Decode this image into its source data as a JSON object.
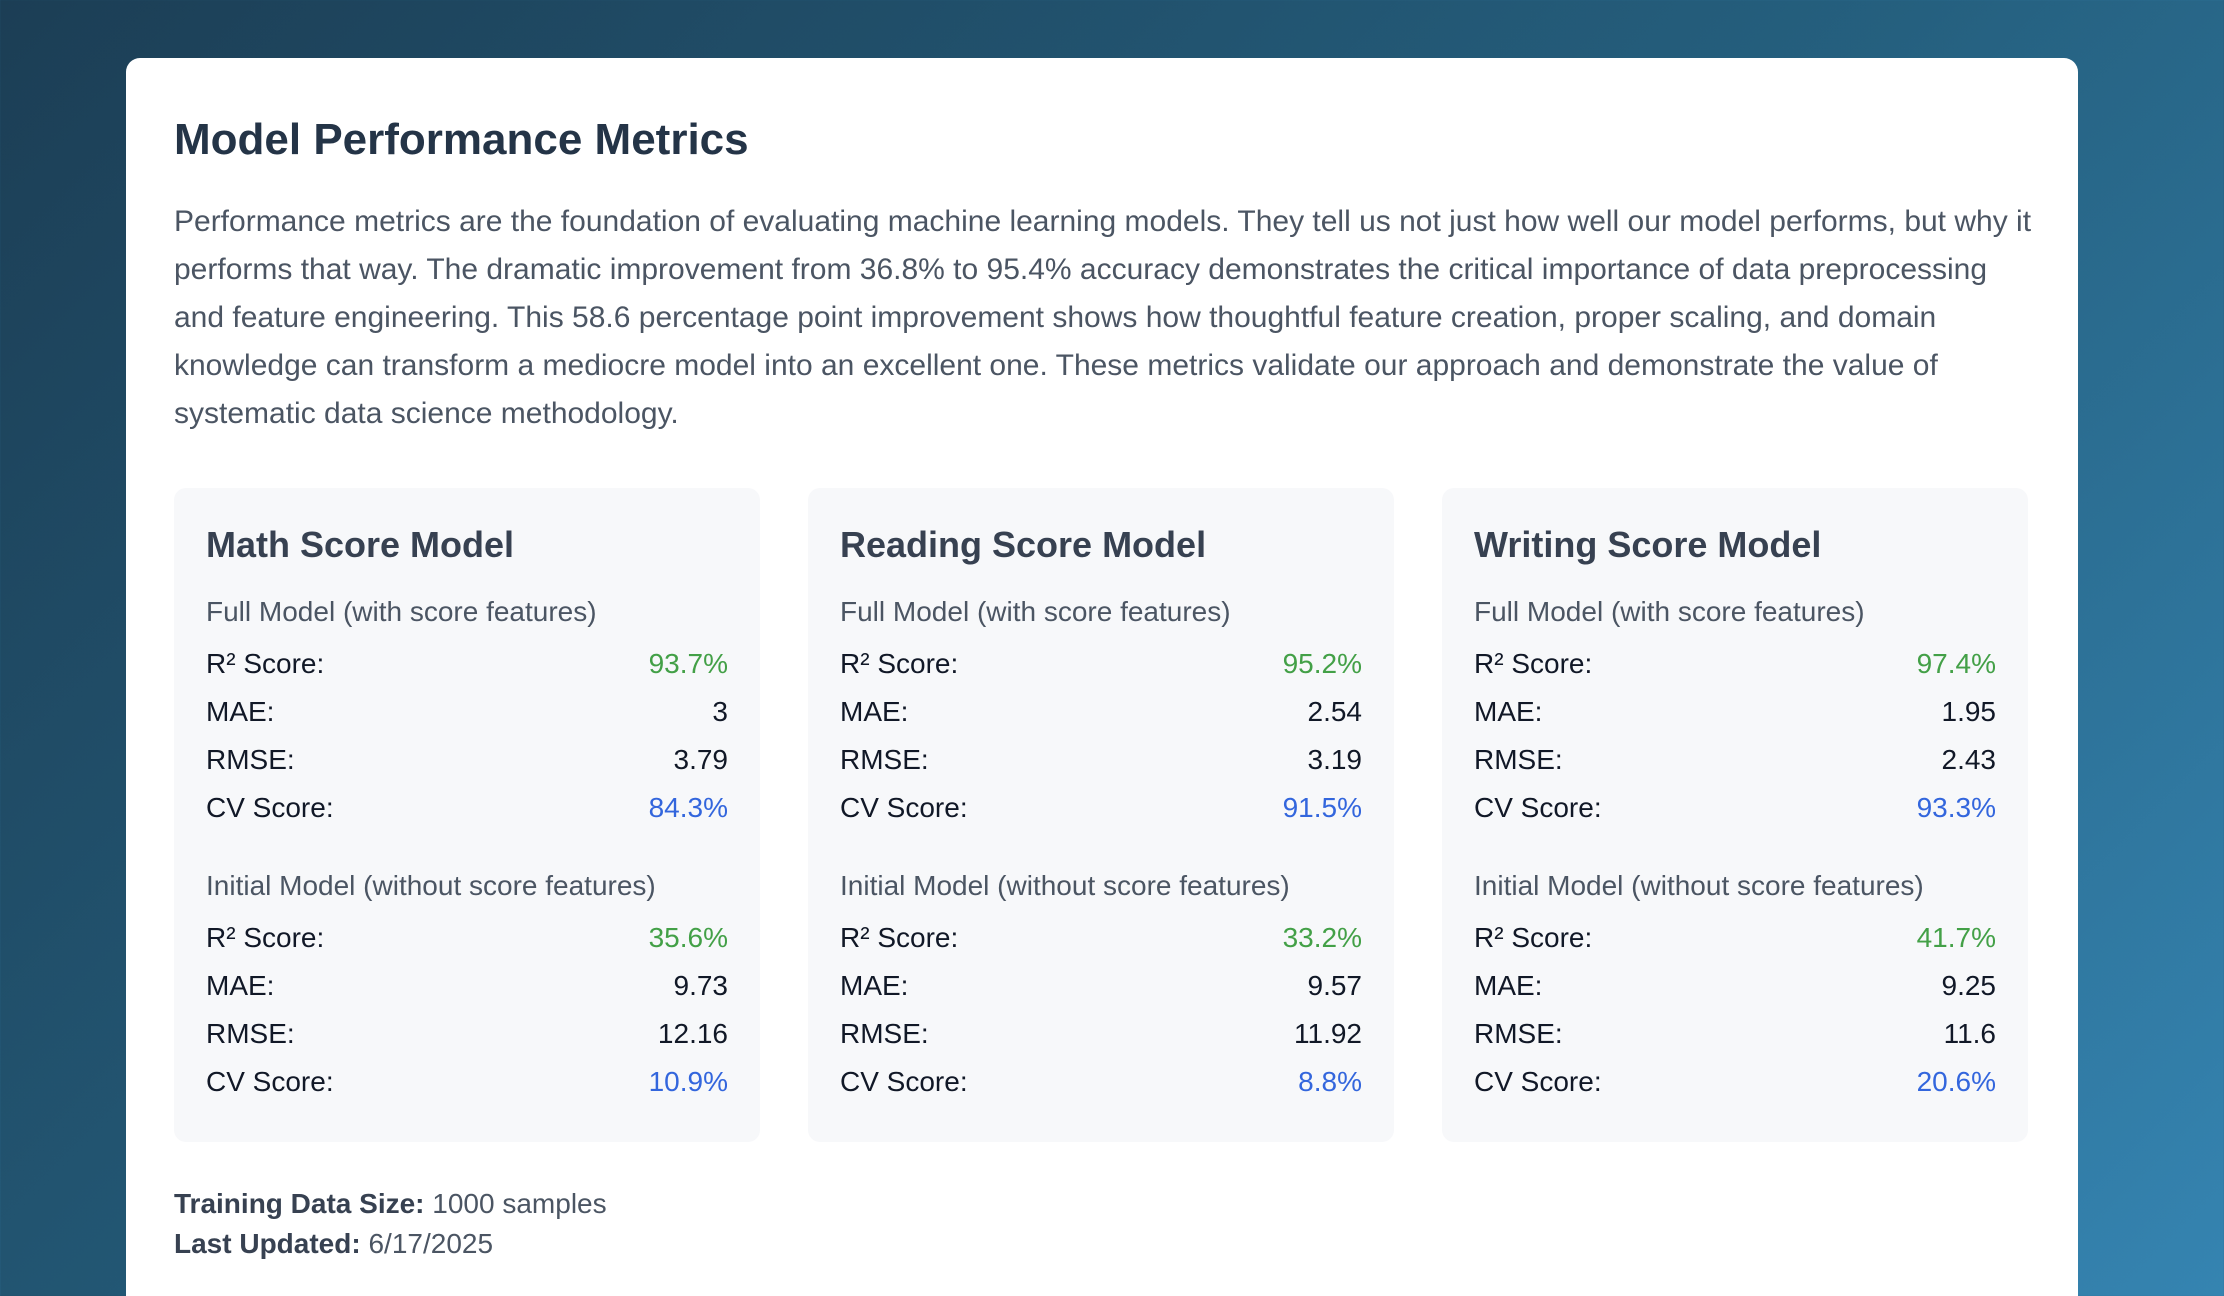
{
  "page": {
    "title": "Model Performance Metrics",
    "description": "Performance metrics are the foundation of evaluating machine learning models. They tell us not just how well our model performs, but why it performs that way. The dramatic improvement from 36.8% to 95.4% accuracy demonstrates the critical importance of data preprocessing and feature engineering. This 58.6 percentage point improvement shows how thoughtful feature creation, proper scaling, and domain knowledge can transform a mediocre model into an excellent one. These metrics validate our approach and demonstrate the value of systematic data science methodology."
  },
  "labels": {
    "full_model": "Full Model (with score features)",
    "initial_model": "Initial Model (without score features)",
    "r2": "R² Score:",
    "mae": "MAE:",
    "rmse": "RMSE:",
    "cv": "CV Score:"
  },
  "models": [
    {
      "title": "Math Score Model",
      "full": {
        "r2": "93.7%",
        "mae": "3",
        "rmse": "3.79",
        "cv": "84.3%"
      },
      "initial": {
        "r2": "35.6%",
        "mae": "9.73",
        "rmse": "12.16",
        "cv": "10.9%"
      }
    },
    {
      "title": "Reading Score Model",
      "full": {
        "r2": "95.2%",
        "mae": "2.54",
        "rmse": "3.19",
        "cv": "91.5%"
      },
      "initial": {
        "r2": "33.2%",
        "mae": "9.57",
        "rmse": "11.92",
        "cv": "8.8%"
      }
    },
    {
      "title": "Writing Score Model",
      "full": {
        "r2": "97.4%",
        "mae": "1.95",
        "rmse": "2.43",
        "cv": "93.3%"
      },
      "initial": {
        "r2": "41.7%",
        "mae": "9.25",
        "rmse": "11.6",
        "cv": "20.6%"
      }
    }
  ],
  "footer": {
    "training_label": "Training Data Size:",
    "training_value": "1000 samples",
    "updated_label": "Last Updated:",
    "updated_value": "6/17/2025"
  },
  "colors": {
    "r2": "#43a047",
    "cv": "#3366dd"
  }
}
